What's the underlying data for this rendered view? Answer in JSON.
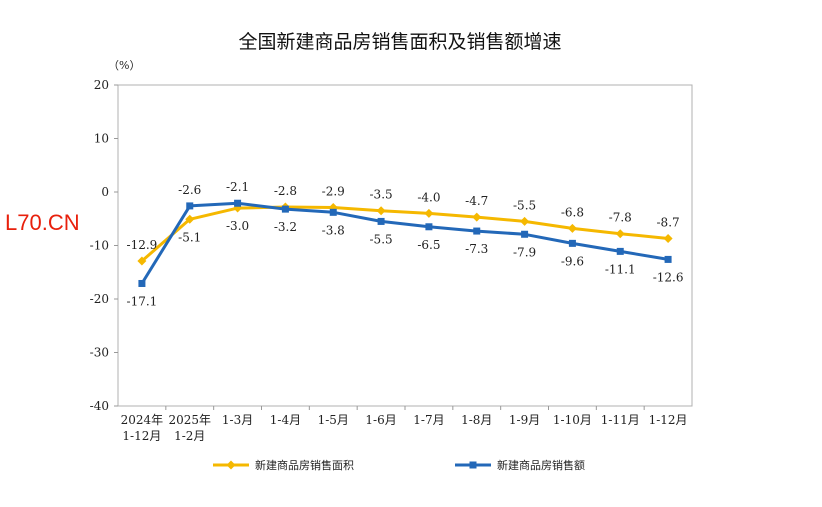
{
  "watermark": "L70.CN",
  "chart_data": {
    "type": "line",
    "title": "全国新建商品房销售面积及销售额增速",
    "unit_label": "（%）",
    "ylim": [
      -40,
      20
    ],
    "yticks": [
      20,
      10,
      0,
      -10,
      -20,
      -30,
      -40
    ],
    "categories": [
      {
        "line1": "2024年",
        "line2": "1-12月"
      },
      {
        "line1": "2025年",
        "line2": "1-2月"
      },
      {
        "line1": "1-3月",
        "line2": ""
      },
      {
        "line1": "1-4月",
        "line2": ""
      },
      {
        "line1": "1-5月",
        "line2": ""
      },
      {
        "line1": "1-6月",
        "line2": ""
      },
      {
        "line1": "1-7月",
        "line2": ""
      },
      {
        "line1": "1-8月",
        "line2": ""
      },
      {
        "line1": "1-9月",
        "line2": ""
      },
      {
        "line1": "1-10月",
        "line2": ""
      },
      {
        "line1": "1-11月",
        "line2": ""
      },
      {
        "line1": "1-12月",
        "line2": ""
      }
    ],
    "series": [
      {
        "name": "新建商品房销售面积",
        "color": "#f5b800",
        "marker": "diamond",
        "values": [
          -12.9,
          -5.1,
          -3.0,
          -2.8,
          -2.9,
          -3.5,
          -4.0,
          -4.7,
          -5.5,
          -6.8,
          -7.8,
          -8.7
        ],
        "labels": [
          "-12.9",
          "-5.1",
          "-3.0",
          "-2.8",
          "-2.9",
          "-3.5",
          "-4.0",
          "-4.7",
          "-5.5",
          "-6.8",
          "-7.8",
          "-8.7"
        ]
      },
      {
        "name": "新建商品房销售额",
        "color": "#2368b8",
        "marker": "square",
        "values": [
          -17.1,
          -2.6,
          -2.1,
          -3.2,
          -3.8,
          -5.5,
          -6.5,
          -7.3,
          -7.9,
          -9.6,
          -11.1,
          -12.6
        ],
        "labels": [
          "-17.1",
          "-2.6",
          "-2.1",
          "-3.2",
          "-3.8",
          "-5.5",
          "-6.5",
          "-7.3",
          "-7.9",
          "-9.6",
          "-11.1",
          "-12.6"
        ]
      }
    ],
    "legend": "bottom"
  }
}
